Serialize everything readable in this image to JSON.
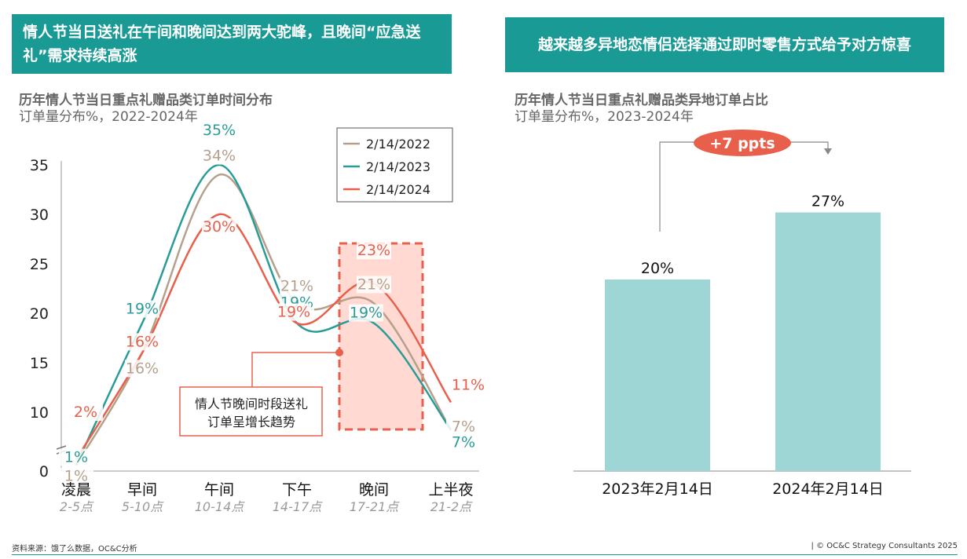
{
  "left_panel": {
    "banner": "情人节当日送礼在午间和晚间达到两大驼峰，且晚间“应急送礼”需求持续高涨",
    "title": "历年情人节当日重点礼赠品类订单时间分布",
    "note": "订单量分布%，2022-2024年",
    "callout": [
      "情人节晚间时段送礼",
      "订单呈增长趋势"
    ]
  },
  "right_panel": {
    "banner": "越来越多异地恋情侣选择通过即时零售方式给予对方惊喜",
    "title": "历年情人节当日重点礼赠品类异地订单占比",
    "note": "订单量分布%，2023-2024年",
    "delta_label": "+7 ppts"
  },
  "footer": {
    "source": "资料来源：饿了么数据，OC&C分析",
    "copyright": "| © OC&C Strategy Consultants 2025"
  },
  "colors": {
    "teal_banner": "#1a9a94",
    "s2022": "#b5a08c",
    "s2023": "#2a9c98",
    "s2024": "#e8604c",
    "bar": "#9dd6d4",
    "highlight": "#ffd9d2"
  },
  "chart_data": [
    {
      "type": "line",
      "title": "历年情人节当日重点礼赠品类订单时间分布",
      "categories": [
        "凌晨",
        "早间",
        "午间",
        "下午",
        "晚间",
        "上半夜"
      ],
      "category_sublabels": [
        "2-5点",
        "5-10点",
        "10-14点",
        "14-17点",
        "17-21点",
        "21-2点"
      ],
      "yticks": [
        0,
        10,
        15,
        20,
        25,
        30,
        35
      ],
      "ylim": [
        0,
        35
      ],
      "axis_break": true,
      "legend_position": "top-right",
      "series": [
        {
          "name": "2/14/2022",
          "values": [
            1,
            16,
            34,
            21,
            21,
            7
          ],
          "labels": [
            "1%",
            "16%",
            "34%",
            "21%",
            "21%",
            "7%"
          ]
        },
        {
          "name": "2/14/2023",
          "values": [
            1,
            19,
            35,
            19,
            19,
            7
          ],
          "labels": [
            "1%",
            "19%",
            "35%",
            "19%",
            "19%",
            "7%"
          ]
        },
        {
          "name": "2/14/2024",
          "values": [
            2,
            16,
            30,
            19,
            23,
            11
          ],
          "labels": [
            "2%",
            "16%",
            "30%",
            "19%",
            "23%",
            "11%"
          ]
        }
      ],
      "highlight_category": "晚间"
    },
    {
      "type": "bar",
      "title": "历年情人节当日重点礼赠品类异地订单占比",
      "categories": [
        "2023年2月14日",
        "2024年2月14日"
      ],
      "values": [
        20,
        27
      ],
      "labels": [
        "20%",
        "27%"
      ],
      "annotation": "+7 ppts"
    }
  ]
}
